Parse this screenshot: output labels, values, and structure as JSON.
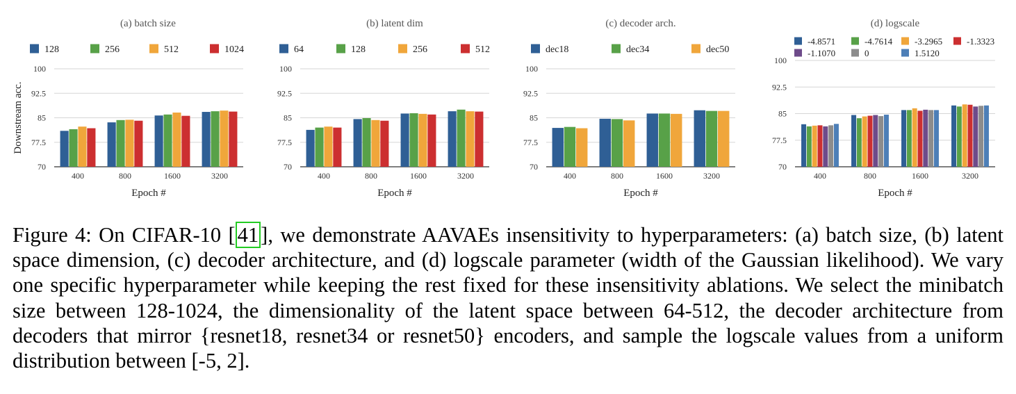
{
  "colors": {
    "blue": "#2f5f95",
    "green": "#58a148",
    "orange": "#f0a63b",
    "red": "#cc2f30",
    "purple": "#6e4b8a",
    "gray": "#8c8c8c",
    "lightblue": "#4d7fb7",
    "ref_box": "#22cc22"
  },
  "chart_data": [
    {
      "type": "bar",
      "title": "(a) batch size",
      "xlabel": "Epoch #",
      "ylabel": "Downstream acc.",
      "ylim": [
        70,
        100
      ],
      "yticks": [
        "70",
        "77.5",
        "85",
        "92.5",
        "100"
      ],
      "categories": [
        "400",
        "800",
        "1600",
        "3200"
      ],
      "legend_position": "top",
      "series": [
        {
          "name": "128",
          "color": "#2f5f95",
          "values": [
            81.0,
            83.6,
            85.7,
            86.8
          ]
        },
        {
          "name": "256",
          "color": "#58a148",
          "values": [
            81.5,
            84.3,
            86.0,
            87.0
          ]
        },
        {
          "name": "512",
          "color": "#f0a63b",
          "values": [
            82.3,
            84.4,
            86.6,
            87.2
          ]
        },
        {
          "name": "1024",
          "color": "#cc2f30",
          "values": [
            81.8,
            84.1,
            85.6,
            86.9
          ]
        }
      ]
    },
    {
      "type": "bar",
      "title": "(b) latent dim",
      "xlabel": "Epoch #",
      "ylabel": "",
      "ylim": [
        70,
        100
      ],
      "yticks": [
        "70",
        "77.5",
        "85",
        "92.5",
        "100"
      ],
      "categories": [
        "400",
        "800",
        "1600",
        "3200"
      ],
      "legend_position": "top",
      "series": [
        {
          "name": "64",
          "color": "#2f5f95",
          "values": [
            81.3,
            84.6,
            86.3,
            87.0
          ]
        },
        {
          "name": "128",
          "color": "#58a148",
          "values": [
            82.0,
            84.9,
            86.4,
            87.5
          ]
        },
        {
          "name": "256",
          "color": "#f0a63b",
          "values": [
            82.3,
            84.3,
            86.2,
            87.0
          ]
        },
        {
          "name": "512",
          "color": "#cc2f30",
          "values": [
            82.0,
            84.1,
            86.0,
            86.9
          ]
        }
      ]
    },
    {
      "type": "bar",
      "title": "(c) decoder arch.",
      "xlabel": "Epoch #",
      "ylabel": "",
      "ylim": [
        70,
        100
      ],
      "yticks": [
        "70",
        "77.5",
        "85",
        "92.5",
        "100"
      ],
      "categories": [
        "400",
        "800",
        "1600",
        "3200"
      ],
      "legend_position": "top",
      "series": [
        {
          "name": "dec18",
          "color": "#2f5f95",
          "values": [
            81.9,
            84.7,
            86.3,
            87.3
          ]
        },
        {
          "name": "dec34",
          "color": "#58a148",
          "values": [
            82.2,
            84.6,
            86.3,
            87.1
          ]
        },
        {
          "name": "dec50",
          "color": "#f0a63b",
          "values": [
            81.8,
            84.2,
            86.2,
            87.1
          ]
        }
      ]
    },
    {
      "type": "bar",
      "title": "(d) logscale",
      "xlabel": "Epoch #",
      "ylabel": "",
      "ylim": [
        70,
        100
      ],
      "yticks": [
        "70",
        "77.5",
        "85",
        "92.5",
        "100"
      ],
      "categories": [
        "400",
        "800",
        "1600",
        "3200"
      ],
      "legend_position": "top",
      "series": [
        {
          "name": "-4.8571",
          "color": "#2f5f95",
          "values": [
            82.0,
            84.6,
            86.0,
            87.3
          ]
        },
        {
          "name": "-4.7614",
          "color": "#58a148",
          "values": [
            81.4,
            83.7,
            86.0,
            87.0
          ]
        },
        {
          "name": "-3.2965",
          "color": "#f0a63b",
          "values": [
            81.6,
            84.2,
            86.5,
            87.6
          ]
        },
        {
          "name": "-1.3323",
          "color": "#cc2f30",
          "values": [
            81.7,
            84.4,
            85.8,
            87.5
          ]
        },
        {
          "name": "-1.1070",
          "color": "#6e4b8a",
          "values": [
            81.4,
            84.6,
            86.1,
            87.0
          ]
        },
        {
          "name": "0",
          "color": "#8c8c8c",
          "values": [
            81.7,
            84.3,
            86.0,
            87.2
          ]
        },
        {
          "name": "1.5120",
          "color": "#4d7fb7",
          "values": [
            82.1,
            84.7,
            86.0,
            87.3
          ]
        }
      ]
    }
  ],
  "caption": {
    "prefix": "Figure 4: On CIFAR-10 [",
    "ref": "41",
    "suffix": "], we demonstrate AAVAEs insensitivity to hyperparameters: (a) batch size, (b) latent space dimension, (c) decoder architecture, and (d) logscale parameter (width of the Gaussian likelihood). We vary one specific hyperparameter while keeping the rest fixed for these insensitivity ablations. We select the minibatch size between 128-1024, the dimensionality of the latent space between 64-512, the decoder architecture from decoders that mirror {resnet18, resnet34 or resnet50} encoders, and sample the logscale values from a uniform distribution between [-5, 2]."
  }
}
